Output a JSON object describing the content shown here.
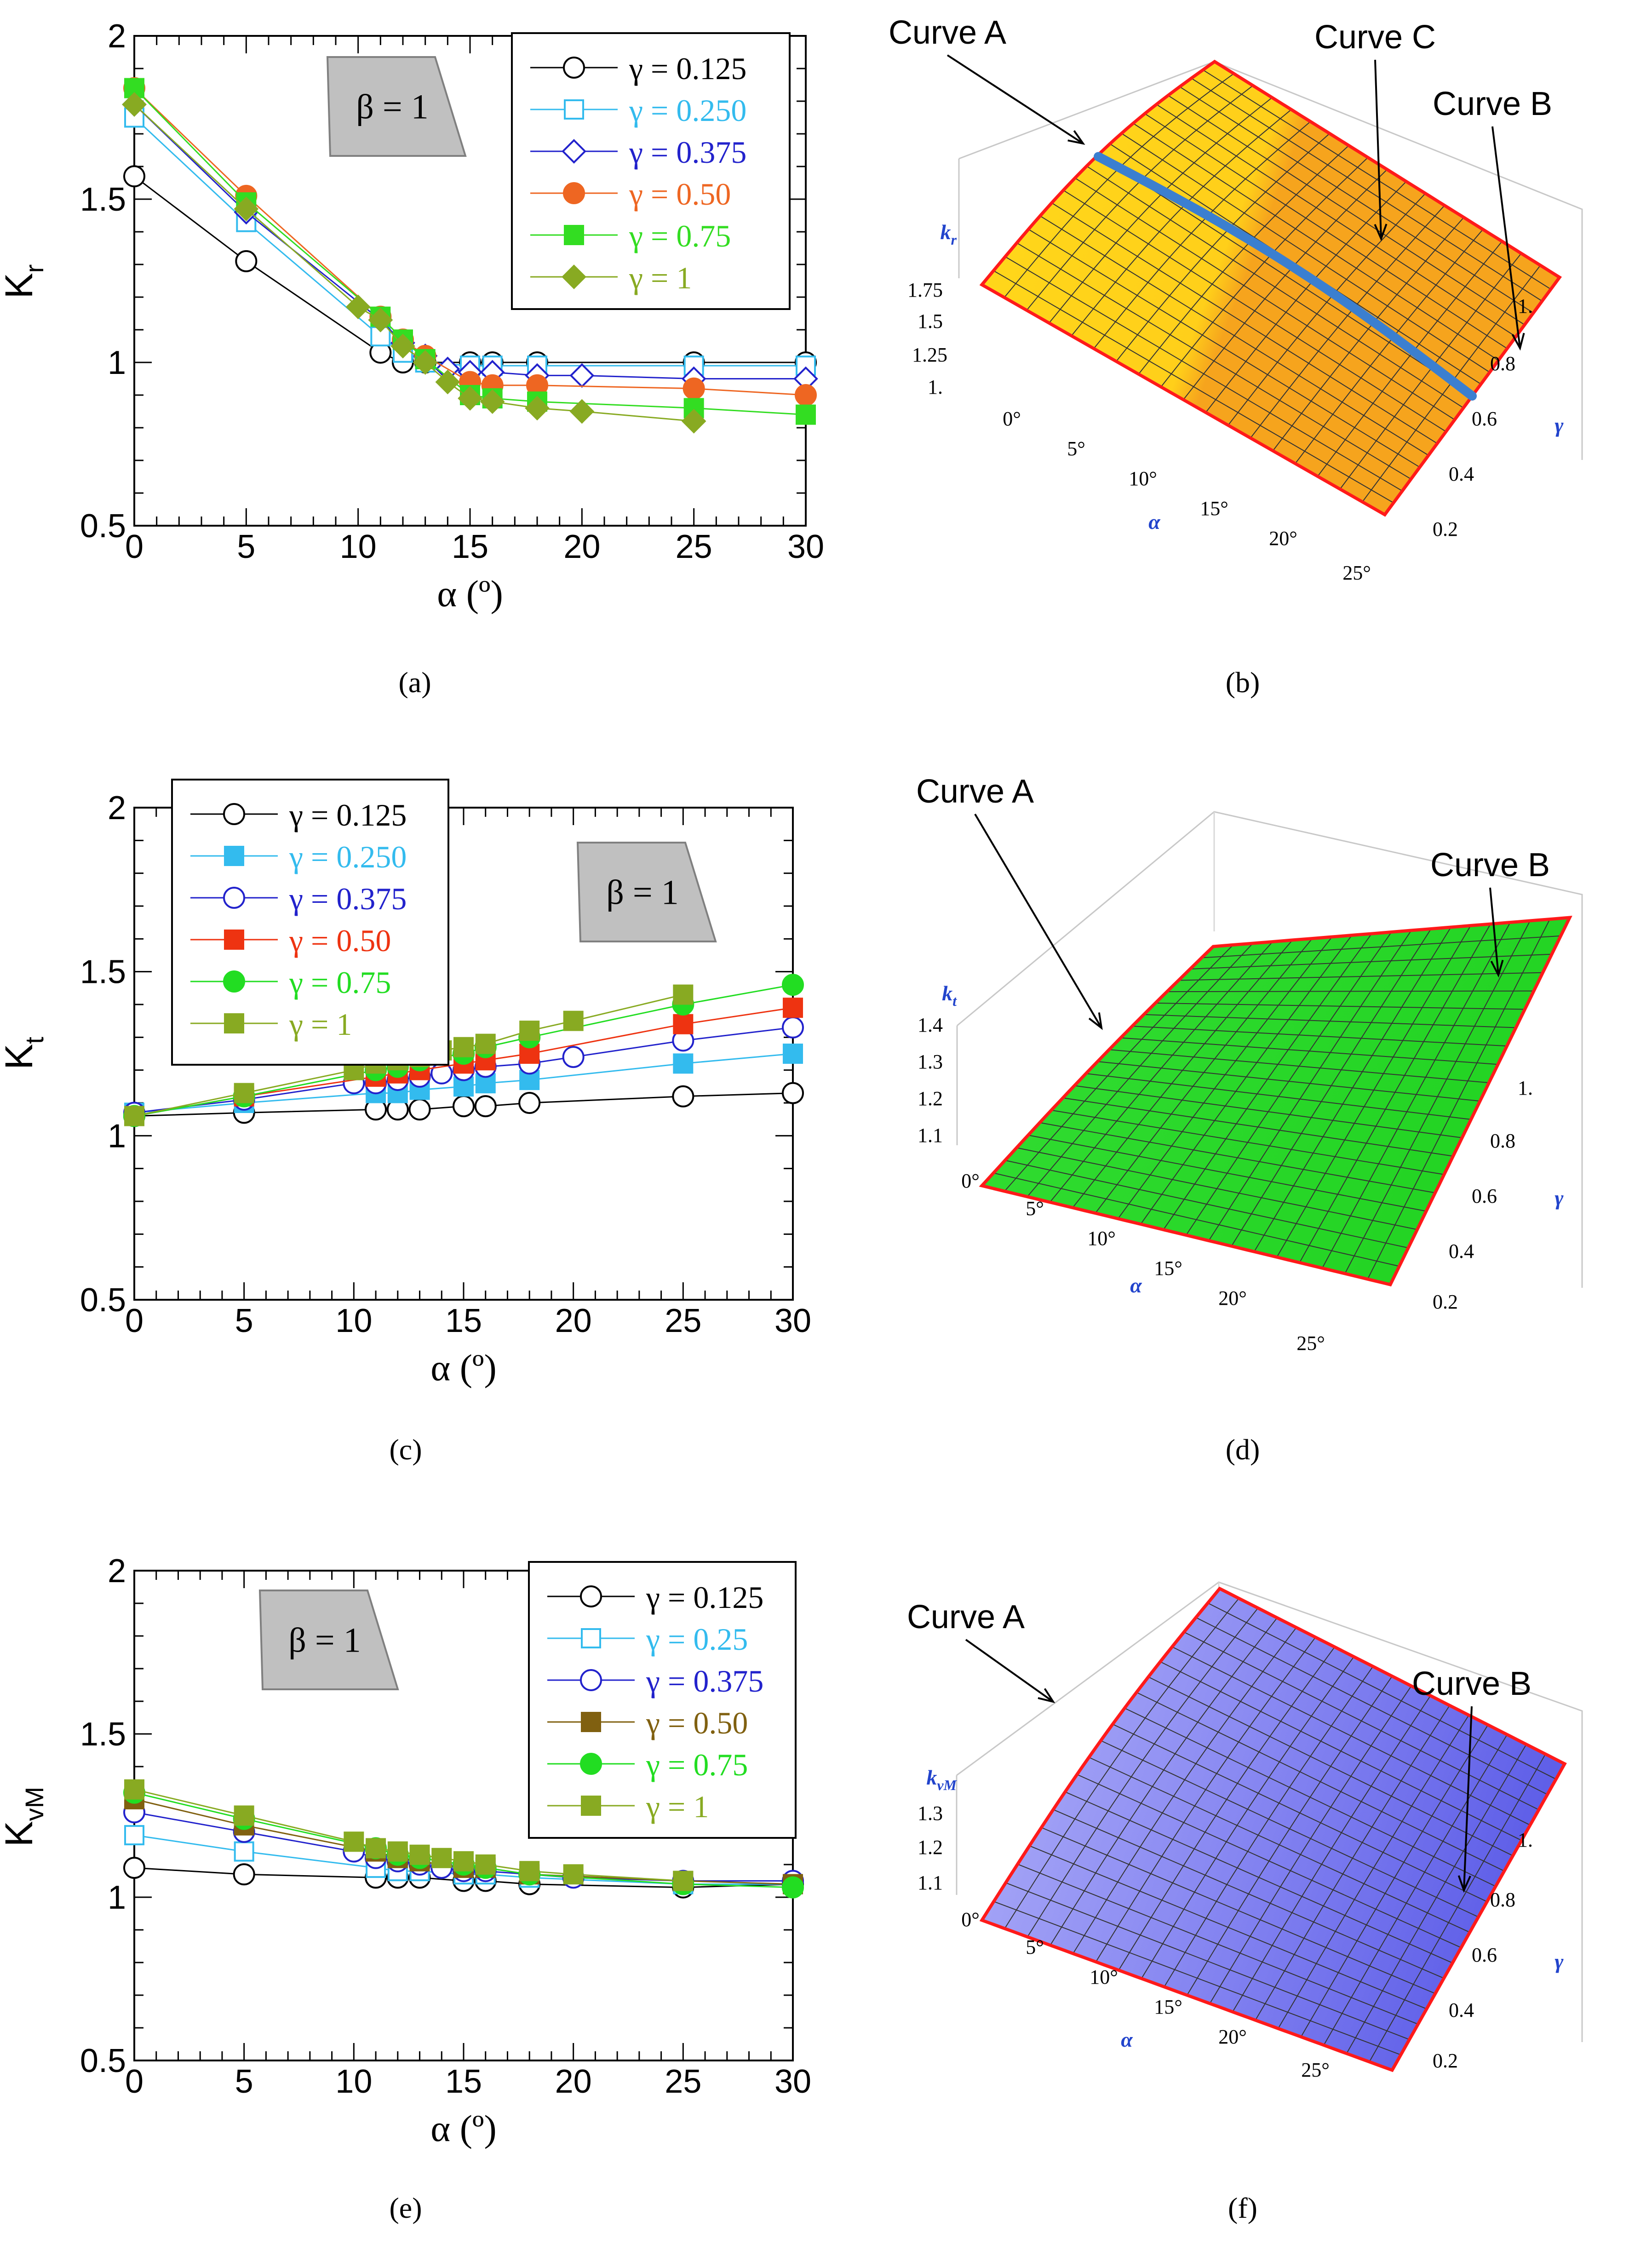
{
  "chart_data": [
    {
      "type": "line",
      "id": "a",
      "panel_label": "(a)",
      "ylabel_main": "K",
      "ylabel_sub": "r",
      "xlabel": "α (º)",
      "xlim": [
        0,
        30
      ],
      "ylim": [
        0.5,
        2
      ],
      "xticks": [
        0,
        5,
        10,
        15,
        20,
        25,
        30
      ],
      "yticks": [
        0.5,
        1,
        1.5,
        2
      ],
      "ytick_labels": [
        "0.5",
        "1",
        "1.5",
        "2"
      ],
      "beta_label": "β = 1",
      "legend_position": "top-right",
      "series": [
        {
          "name": "γ = 0.125",
          "color": "#000000",
          "marker": "circle-open",
          "x": [
            0,
            5,
            11,
            12,
            13,
            15,
            16,
            18,
            25,
            30
          ],
          "y": [
            1.57,
            1.31,
            1.03,
            1.0,
            1.0,
            1.0,
            1.0,
            1.0,
            1.0,
            1.0
          ]
        },
        {
          "name": "γ = 0.250",
          "color": "#33bbee",
          "marker": "square-open",
          "x": [
            0,
            5,
            11,
            12,
            13,
            15,
            16,
            18,
            25,
            30
          ],
          "y": [
            1.75,
            1.43,
            1.08,
            1.03,
            1.0,
            0.99,
            0.99,
            0.99,
            0.99,
            0.99
          ]
        },
        {
          "name": "γ = 0.375",
          "color": "#2222cc",
          "marker": "diamond-open",
          "x": [
            0,
            5,
            11,
            12,
            13,
            14,
            15,
            16,
            18,
            20,
            25,
            30
          ],
          "y": [
            1.79,
            1.46,
            1.13,
            1.06,
            1.02,
            0.98,
            0.97,
            0.97,
            0.96,
            0.96,
            0.95,
            0.95
          ]
        },
        {
          "name": "γ = 0.50",
          "color": "#ee6622",
          "marker": "circle-filled",
          "x": [
            0,
            5,
            11,
            12,
            13,
            15,
            16,
            18,
            25,
            30
          ],
          "y": [
            1.84,
            1.51,
            1.14,
            1.07,
            1.02,
            0.94,
            0.93,
            0.93,
            0.92,
            0.9
          ]
        },
        {
          "name": "γ = 0.75",
          "color": "#33dd22",
          "marker": "square-filled",
          "x": [
            0,
            5,
            11,
            12,
            13,
            15,
            16,
            18,
            25,
            30
          ],
          "y": [
            1.84,
            1.49,
            1.14,
            1.07,
            1.01,
            0.9,
            0.89,
            0.88,
            0.86,
            0.84
          ]
        },
        {
          "name": "γ = 1",
          "color": "#88aa22",
          "marker": "diamond-filled",
          "x": [
            0,
            5,
            10,
            11,
            12,
            13,
            14,
            15,
            16,
            18,
            20,
            25
          ],
          "y": [
            1.79,
            1.47,
            1.17,
            1.13,
            1.05,
            1.0,
            0.94,
            0.89,
            0.88,
            0.86,
            0.85,
            0.82
          ]
        }
      ]
    },
    {
      "type": "line",
      "id": "c",
      "panel_label": "(c)",
      "ylabel_main": "K",
      "ylabel_sub": "t",
      "xlabel": "α (º)",
      "xlim": [
        0,
        30
      ],
      "ylim": [
        0.5,
        2
      ],
      "xticks": [
        0,
        5,
        10,
        15,
        20,
        25,
        30
      ],
      "yticks": [
        0.5,
        1,
        1.5,
        2
      ],
      "ytick_labels": [
        "0.5",
        "1",
        "1.5",
        "2"
      ],
      "beta_label": "β = 1",
      "legend_position": "top-left",
      "series": [
        {
          "name": "γ = 0.125",
          "color": "#000000",
          "marker": "circle-open",
          "x": [
            0,
            5,
            11,
            12,
            13,
            15,
            16,
            18,
            25,
            30
          ],
          "y": [
            1.06,
            1.07,
            1.08,
            1.08,
            1.08,
            1.09,
            1.09,
            1.1,
            1.12,
            1.13
          ]
        },
        {
          "name": "γ = 0.250",
          "color": "#33bbee",
          "marker": "square-filled",
          "x": [
            0,
            5,
            11,
            12,
            13,
            15,
            16,
            18,
            25,
            30
          ],
          "y": [
            1.07,
            1.1,
            1.13,
            1.13,
            1.14,
            1.15,
            1.16,
            1.17,
            1.22,
            1.25
          ]
        },
        {
          "name": "γ = 0.375",
          "color": "#2222cc",
          "marker": "circle-open",
          "x": [
            0,
            5,
            10,
            11,
            12,
            13,
            14,
            15,
            16,
            18,
            20,
            25,
            30
          ],
          "y": [
            1.07,
            1.11,
            1.16,
            1.16,
            1.17,
            1.18,
            1.19,
            1.2,
            1.21,
            1.22,
            1.24,
            1.29,
            1.33
          ]
        },
        {
          "name": "γ = 0.50",
          "color": "#ee3311",
          "marker": "square-filled",
          "x": [
            0,
            5,
            11,
            12,
            13,
            15,
            16,
            18,
            25,
            30
          ],
          "y": [
            1.06,
            1.12,
            1.18,
            1.19,
            1.2,
            1.22,
            1.23,
            1.25,
            1.34,
            1.39
          ]
        },
        {
          "name": "γ = 0.75",
          "color": "#22dd22",
          "marker": "circle-filled",
          "x": [
            0,
            5,
            11,
            12,
            13,
            15,
            16,
            18,
            25,
            30
          ],
          "y": [
            1.06,
            1.12,
            1.2,
            1.21,
            1.23,
            1.25,
            1.27,
            1.3,
            1.4,
            1.46
          ]
        },
        {
          "name": "γ = 1",
          "color": "#88aa22",
          "marker": "square-filled",
          "x": [
            0,
            5,
            10,
            11,
            12,
            13,
            14,
            15,
            16,
            18,
            20,
            25
          ],
          "y": [
            1.06,
            1.13,
            1.2,
            1.22,
            1.23,
            1.24,
            1.26,
            1.27,
            1.28,
            1.32,
            1.35,
            1.43
          ]
        }
      ]
    },
    {
      "type": "line",
      "id": "e",
      "panel_label": "(e)",
      "ylabel_main": "K",
      "ylabel_sub": "vM",
      "xlabel": "α (º)",
      "xlim": [
        0,
        30
      ],
      "ylim": [
        0.5,
        2
      ],
      "xticks": [
        0,
        5,
        10,
        15,
        20,
        25,
        30
      ],
      "yticks": [
        0.5,
        1,
        1.5,
        2
      ],
      "ytick_labels": [
        "0.5",
        "1",
        "1.5",
        "2"
      ],
      "beta_label": "β = 1",
      "legend_position": "top-right",
      "series": [
        {
          "name": "γ = 0.125",
          "color": "#000000",
          "marker": "circle-open",
          "x": [
            0,
            5,
            11,
            12,
            13,
            15,
            16,
            18,
            25,
            30
          ],
          "y": [
            1.09,
            1.07,
            1.06,
            1.06,
            1.06,
            1.05,
            1.05,
            1.04,
            1.03,
            1.04
          ]
        },
        {
          "name": "γ = 0.25",
          "color": "#33bbee",
          "marker": "square-open",
          "x": [
            0,
            5,
            11,
            12,
            13,
            15,
            16,
            18,
            25,
            30
          ],
          "y": [
            1.19,
            1.14,
            1.09,
            1.08,
            1.08,
            1.07,
            1.07,
            1.06,
            1.04,
            1.04
          ]
        },
        {
          "name": "γ = 0.375",
          "color": "#2222cc",
          "marker": "circle-open",
          "x": [
            0,
            5,
            10,
            11,
            12,
            13,
            14,
            15,
            16,
            18,
            20,
            25,
            30
          ],
          "y": [
            1.26,
            1.2,
            1.14,
            1.12,
            1.11,
            1.1,
            1.09,
            1.08,
            1.08,
            1.07,
            1.06,
            1.05,
            1.05
          ]
        },
        {
          "name": "γ = 0.50",
          "color": "#806010",
          "marker": "square-filled",
          "x": [
            0,
            5,
            11,
            12,
            13,
            15,
            16,
            18,
            25,
            30
          ],
          "y": [
            1.3,
            1.22,
            1.14,
            1.12,
            1.11,
            1.09,
            1.09,
            1.07,
            1.05,
            1.04
          ]
        },
        {
          "name": "γ = 0.75",
          "color": "#22dd22",
          "marker": "circle-filled",
          "x": [
            0,
            5,
            11,
            12,
            13,
            15,
            16,
            18,
            25,
            30
          ],
          "y": [
            1.32,
            1.24,
            1.15,
            1.13,
            1.12,
            1.1,
            1.09,
            1.07,
            1.04,
            1.03
          ]
        },
        {
          "name": "γ = 1",
          "color": "#88aa22",
          "marker": "square-filled",
          "x": [
            0,
            5,
            10,
            11,
            12,
            13,
            14,
            15,
            16,
            18,
            20,
            25
          ],
          "y": [
            1.33,
            1.25,
            1.17,
            1.15,
            1.14,
            1.13,
            1.12,
            1.11,
            1.1,
            1.08,
            1.07,
            1.05
          ]
        }
      ]
    },
    {
      "type": "surface",
      "id": "b",
      "panel_label": "(b)",
      "z_label_main": "k",
      "z_label_sub": "r",
      "x_label": "α",
      "y_label": "γ",
      "x_ticks": [
        "0°",
        "5°",
        "10°",
        "15°",
        "20°",
        "25°"
      ],
      "y_ticks": [
        "0.2",
        "0.4",
        "0.6",
        "0.8",
        "1."
      ],
      "z_ticks": [
        "1.",
        "1.25",
        "1.5",
        "1.75"
      ],
      "annotations": [
        "Curve A",
        "Curve C",
        "Curve B"
      ],
      "colors": {
        "left": "#ffd91a",
        "right": "#f6a41d",
        "edge": "#ff1a1a",
        "curve_c": "#3b7fd0"
      }
    },
    {
      "type": "surface",
      "id": "d",
      "panel_label": "(d)",
      "z_label_main": "k",
      "z_label_sub": "t",
      "x_label": "α",
      "y_label": "γ",
      "x_ticks": [
        "0°",
        "5°",
        "10°",
        "15°",
        "20°",
        "25°"
      ],
      "y_ticks": [
        "0.2",
        "0.4",
        "0.6",
        "0.8",
        "1."
      ],
      "z_ticks": [
        "1.1",
        "1.2",
        "1.3",
        "1.4"
      ],
      "annotations": [
        "Curve A",
        "Curve B"
      ],
      "colors": {
        "fill": "#22d322",
        "edge": "#ff1a1a"
      }
    },
    {
      "type": "surface",
      "id": "f",
      "panel_label": "(f)",
      "z_label_main": "k",
      "z_label_sub": "vM",
      "x_label": "α",
      "y_label": "γ",
      "x_ticks": [
        "0°",
        "5°",
        "10°",
        "15°",
        "20°",
        "25°"
      ],
      "y_ticks": [
        "0.2",
        "0.4",
        "0.6",
        "0.8",
        "1."
      ],
      "z_ticks": [
        "1.1",
        "1.2",
        "1.3"
      ],
      "annotations": [
        "Curve A",
        "Curve B"
      ],
      "colors": {
        "fill": "#7f7ff0",
        "edge": "#ff1a1a"
      }
    }
  ]
}
